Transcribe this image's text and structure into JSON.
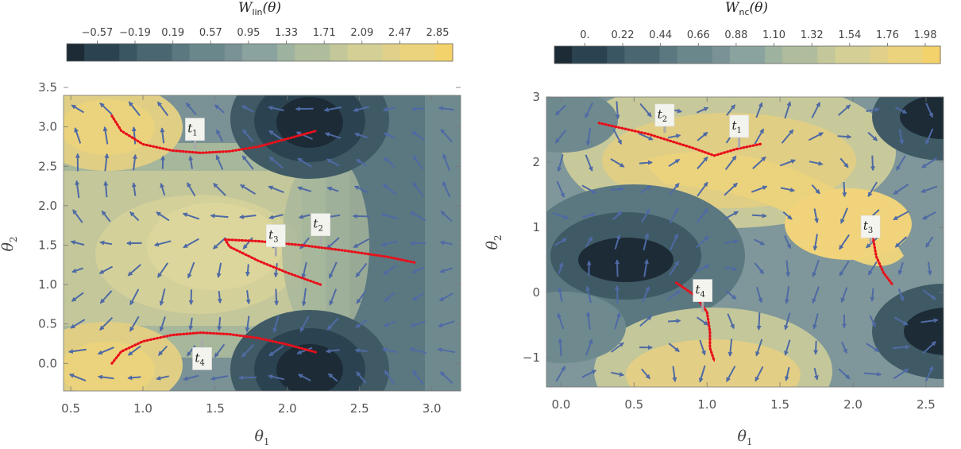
{
  "chart_data": [
    {
      "type": "heatmap",
      "title": "W_lin(θ)",
      "colorbar": {
        "title_main": "W",
        "title_sub": "lin",
        "title_arg": "(θ)",
        "min": -0.76,
        "max": 3.04,
        "ticks": [
          "−0.57",
          "−0.19",
          "0.19",
          "0.57",
          "0.95",
          "1.33",
          "1.71",
          "2.09",
          "2.47",
          "2.85"
        ]
      },
      "xlabel_main": "θ",
      "xlabel_sub": "1",
      "ylabel_main": "θ",
      "ylabel_sub": "2",
      "xlim": [
        0.45,
        3.2
      ],
      "ylim": [
        -0.35,
        3.4
      ],
      "xticks": [
        "0.5",
        "1.0",
        "1.5",
        "2.0",
        "2.5",
        "3.0"
      ],
      "yticks": [
        "0.0",
        "0.5",
        "1.0",
        "1.5",
        "2.0",
        "2.5",
        "3.0",
        "3.5"
      ],
      "curves": [
        {
          "name": "t1",
          "points": [
            [
              0.785,
              3.14
            ],
            [
              0.85,
              2.95
            ],
            [
              1.0,
              2.78
            ],
            [
              1.2,
              2.7
            ],
            [
              1.4,
              2.67
            ],
            [
              1.6,
              2.69
            ],
            [
              1.8,
              2.75
            ],
            [
              2.0,
              2.85
            ],
            [
              2.2,
              2.95
            ]
          ]
        },
        {
          "name": "t2",
          "points": [
            [
              1.57,
              1.57
            ],
            [
              1.8,
              1.55
            ],
            [
              2.1,
              1.5
            ],
            [
              2.4,
              1.43
            ],
            [
              2.7,
              1.35
            ],
            [
              2.88,
              1.28
            ]
          ]
        },
        {
          "name": "t3",
          "points": [
            [
              2.23,
              1.0
            ],
            [
              2.0,
              1.15
            ],
            [
              1.8,
              1.3
            ],
            [
              1.6,
              1.48
            ],
            [
              1.57,
              1.57
            ]
          ]
        },
        {
          "name": "t4",
          "points": [
            [
              0.785,
              0.0
            ],
            [
              0.85,
              0.15
            ],
            [
              1.0,
              0.28
            ],
            [
              1.2,
              0.36
            ],
            [
              1.4,
              0.39
            ],
            [
              1.6,
              0.37
            ],
            [
              1.8,
              0.32
            ],
            [
              2.0,
              0.24
            ],
            [
              2.2,
              0.14
            ]
          ]
        }
      ],
      "labels": [
        {
          "name": "t1",
          "main": "t",
          "sub": "1",
          "pos": [
            1.36,
            2.97
          ],
          "anchor": [
            1.36,
            2.72
          ]
        },
        {
          "name": "t2",
          "main": "t",
          "sub": "2",
          "pos": [
            2.23,
            1.76
          ],
          "anchor": [
            2.23,
            1.5
          ]
        },
        {
          "name": "t3",
          "main": "t",
          "sub": "3",
          "pos": [
            1.92,
            1.62
          ],
          "anchor": [
            1.92,
            1.36
          ]
        },
        {
          "name": "t4",
          "main": "t",
          "sub": "4",
          "pos": [
            1.41,
            0.06
          ],
          "anchor": [
            1.41,
            0.32
          ]
        }
      ]
    },
    {
      "type": "heatmap",
      "title": "W_nc(θ)",
      "colorbar": {
        "title_main": "W",
        "title_sub": "nc",
        "title_arg": "(θ)",
        "min": -0.11,
        "max": 2.09,
        "ticks": [
          "0.",
          "0.22",
          "0.44",
          "0.66",
          "0.88",
          "1.10",
          "1.32",
          "1.54",
          "1.76",
          "1.98"
        ]
      },
      "xlabel_main": "θ",
      "xlabel_sub": "1",
      "ylabel_main": "θ",
      "ylabel_sub": "2",
      "xlim": [
        -0.1,
        2.62
      ],
      "ylim": [
        -1.45,
        3.0
      ],
      "xticks": [
        "0.0",
        "0.5",
        "1.0",
        "1.5",
        "2.0",
        "2.5"
      ],
      "yticks": [
        "−1",
        "0",
        "1",
        "2",
        "3"
      ],
      "curves": [
        {
          "name": "t1",
          "points": [
            [
              1.05,
              2.1
            ],
            [
              1.2,
              2.2
            ],
            [
              1.37,
              2.28
            ]
          ]
        },
        {
          "name": "t2",
          "points": [
            [
              0.26,
              2.6
            ],
            [
              0.6,
              2.43
            ],
            [
              0.9,
              2.22
            ],
            [
              1.05,
              2.1
            ]
          ]
        },
        {
          "name": "t3",
          "points": [
            [
              2.12,
              1.05
            ],
            [
              2.14,
              0.8
            ],
            [
              2.16,
              0.55
            ],
            [
              2.21,
              0.3
            ],
            [
              2.27,
              0.12
            ]
          ]
        },
        {
          "name": "t4",
          "points": [
            [
              0.79,
              0.15
            ],
            [
              0.92,
              -0.05
            ],
            [
              1.0,
              -0.3
            ],
            [
              1.02,
              -0.6
            ],
            [
              1.02,
              -0.85
            ],
            [
              1.05,
              -1.05
            ]
          ]
        }
      ],
      "labels": [
        {
          "name": "t1",
          "main": "t",
          "sub": "1",
          "pos": [
            1.22,
            2.55
          ],
          "anchor": [
            1.22,
            2.22
          ]
        },
        {
          "name": "t2",
          "main": "t",
          "sub": "2",
          "pos": [
            0.71,
            2.72
          ],
          "anchor": [
            0.71,
            2.45
          ]
        },
        {
          "name": "t3",
          "main": "t",
          "sub": "3",
          "pos": [
            2.12,
            1.01
          ],
          "anchor": [
            2.12,
            0.75
          ]
        },
        {
          "name": "t4",
          "main": "t",
          "sub": "4",
          "pos": [
            0.97,
            0.03
          ],
          "anchor": [
            0.97,
            -0.3
          ]
        }
      ]
    }
  ]
}
